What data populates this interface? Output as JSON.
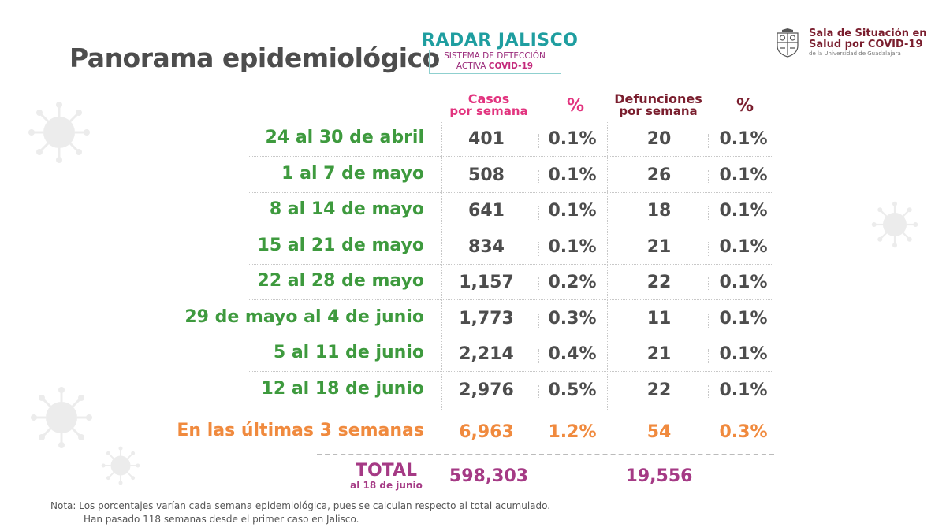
{
  "title": "Panorama epidemiológico",
  "radar": {
    "name": "RADAR JALISCO",
    "line1": "SISTEMA DE DETECCIÓN",
    "line2_prefix": "ACTIVA ",
    "line2_bold": "COVID-19"
  },
  "org": {
    "line1": "Sala de Situación en",
    "line2": "Salud por COVID-19",
    "line3": "de la Universidad de Guadalajara"
  },
  "headers": {
    "cases_line1": "Casos",
    "cases_line2": "por semana",
    "cases_pct": "%",
    "deaths_line1": "Defunciones",
    "deaths_line2": "por semana",
    "deaths_pct": "%"
  },
  "rows": [
    {
      "week": "24 al 30 de abril",
      "cases": "401",
      "cases_pct": "0.1%",
      "deaths": "20",
      "deaths_pct": "0.1%"
    },
    {
      "week": "1 al 7 de mayo",
      "cases": "508",
      "cases_pct": "0.1%",
      "deaths": "26",
      "deaths_pct": "0.1%"
    },
    {
      "week": "8 al 14 de mayo",
      "cases": "641",
      "cases_pct": "0.1%",
      "deaths": "18",
      "deaths_pct": "0.1%"
    },
    {
      "week": "15 al 21 de mayo",
      "cases": "834",
      "cases_pct": "0.1%",
      "deaths": "21",
      "deaths_pct": "0.1%"
    },
    {
      "week": "22 al 28 de mayo",
      "cases": "1,157",
      "cases_pct": "0.2%",
      "deaths": "22",
      "deaths_pct": "0.1%"
    },
    {
      "week": "29 de mayo al 4 de junio",
      "cases": "1,773",
      "cases_pct": "0.3%",
      "deaths": "11",
      "deaths_pct": "0.1%"
    },
    {
      "week": "5 al 11 de junio",
      "cases": "2,214",
      "cases_pct": "0.4%",
      "deaths": "21",
      "deaths_pct": "0.1%"
    },
    {
      "week": "12 al 18 de junio",
      "cases": "2,976",
      "cases_pct": "0.5%",
      "deaths": "22",
      "deaths_pct": "0.1%"
    }
  ],
  "summary": {
    "label": "En las últimas 3 semanas",
    "cases": "6,963",
    "cases_pct": "1.2%",
    "deaths": "54",
    "deaths_pct": "0.3%"
  },
  "total": {
    "label": "TOTAL",
    "sublabel": "al 18 de junio",
    "cases": "598,303",
    "deaths": "19,556"
  },
  "note": {
    "line1": "Nota: Los porcentajes varían cada semana epidemiológica, pues se calculan respecto al total acumulado.",
    "line2": "Han pasado 118 semanas desde el primer caso en Jalisco."
  },
  "colors": {
    "title": "#4d4d4d",
    "week_label": "#3e9a3e",
    "cases_header": "#e2347f",
    "deaths_header": "#7a1e2e",
    "summary": "#f08a3e",
    "total": "#a53a85",
    "radar": "#1f9ea0"
  },
  "icons": [
    "virus-icon",
    "university-seal-icon"
  ]
}
